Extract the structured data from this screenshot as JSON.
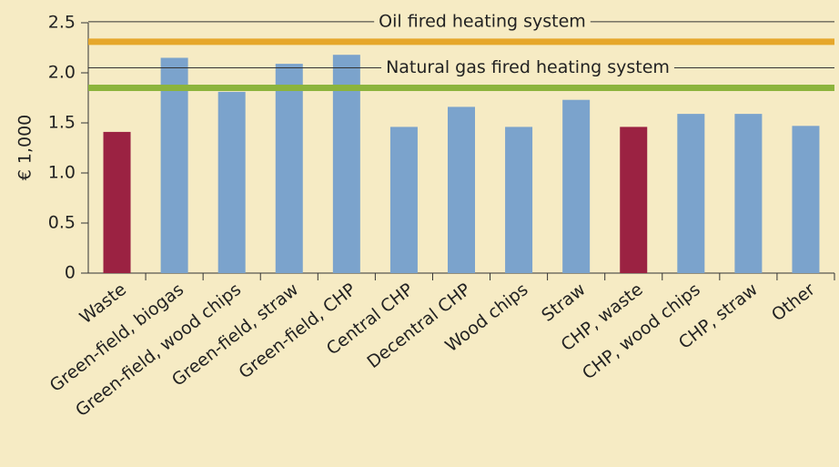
{
  "chart_data": {
    "type": "bar",
    "y_label": "€ 1,000",
    "categories": [
      "Waste",
      "Green-field, biogas",
      "Green-field, wood chips",
      "Green-field, straw",
      "Green-field, CHP",
      "Central CHP",
      "Decentral CHP",
      "Wood chips",
      "Straw",
      "CHP, waste",
      "CHP, wood chips",
      "CHP, straw",
      "Other"
    ],
    "values": [
      1.41,
      2.15,
      1.81,
      2.09,
      2.18,
      1.46,
      1.66,
      1.46,
      1.73,
      1.46,
      1.59,
      1.59,
      1.47
    ],
    "colors": [
      "#9b2242",
      "#7ba3cc",
      "#7ba3cc",
      "#7ba3cc",
      "#7ba3cc",
      "#7ba3cc",
      "#7ba3cc",
      "#7ba3cc",
      "#7ba3cc",
      "#9b2242",
      "#7ba3cc",
      "#7ba3cc",
      "#7ba3cc"
    ],
    "reference_lines": [
      {
        "label": "Oil fired heating system",
        "value": 2.31,
        "color": "#e6a72b"
      },
      {
        "label": "Natural gas fired heating system",
        "value": 1.85,
        "color": "#8cb43c"
      }
    ],
    "ylim": [
      0,
      2.5
    ],
    "yticks": [
      0,
      0.5,
      {
        "value": 1,
        "label": "1.0"
      },
      1.5,
      {
        "value": 2,
        "label": "2.0"
      },
      2.5
    ],
    "grid": false
  }
}
